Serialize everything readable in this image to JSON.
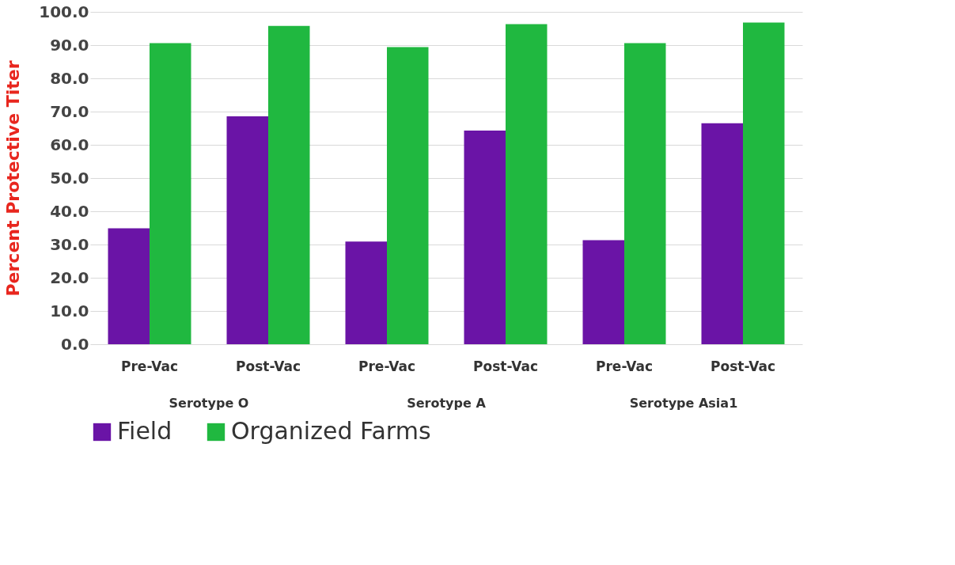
{
  "chart_data": {
    "type": "bar",
    "categories": [
      "Pre-Vac",
      "Post-Vac",
      "Pre-Vac",
      "Post-Vac",
      "Pre-Vac",
      "Post-Vac"
    ],
    "series": [
      {
        "name": "Field",
        "color": "#6a14a6",
        "values": [
          34.9,
          68.6,
          30.9,
          64.3,
          31.3,
          66.5
        ]
      },
      {
        "name": "Organized Farms",
        "color": "#20b840",
        "values": [
          90.6,
          95.8,
          89.4,
          96.3,
          90.6,
          96.8
        ]
      }
    ],
    "ylabel": "Percent Protective Titer",
    "ylim": [
      0,
      100
    ],
    "yticks": [
      {
        "value": 0,
        "label": "0.0"
      },
      {
        "value": 10,
        "label": "10.0"
      },
      {
        "value": 20,
        "label": "20.0"
      },
      {
        "value": 30,
        "label": "30.0"
      },
      {
        "value": 40,
        "label": "40.0"
      },
      {
        "value": 50,
        "label": "50.0"
      },
      {
        "value": 60,
        "label": "60.0"
      },
      {
        "value": 70,
        "label": "70.0"
      },
      {
        "value": 80,
        "label": "80.0"
      },
      {
        "value": 90,
        "label": "90.0"
      },
      {
        "value": 100,
        "label": "100.0"
      }
    ],
    "annotations": [
      "Serotype O",
      "Serotype A",
      "Serotype Asia1"
    ],
    "grid": "y",
    "legend": "bottom"
  }
}
